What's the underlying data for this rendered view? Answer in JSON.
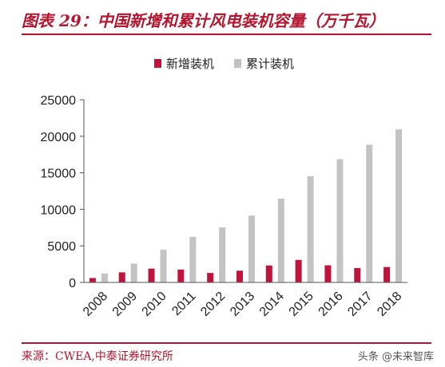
{
  "title": "图表 29：中国新增和累计风电装机容量（万千瓦）",
  "source": "来源：CWEA,中泰证券研究所",
  "watermark": "头条 @未来智库",
  "colors": {
    "accent": "#b5142f",
    "new_series": "#c0143c",
    "cumulative_series": "#c3c3c3",
    "axis": "#555555"
  },
  "chart_data": {
    "type": "bar",
    "categories": [
      "2008",
      "2009",
      "2010",
      "2011",
      "2012",
      "2013",
      "2014",
      "2015",
      "2016",
      "2017",
      "2018"
    ],
    "series": [
      {
        "name": "新增装机",
        "color": "#c0143c",
        "values": [
          600,
          1380,
          1890,
          1760,
          1300,
          1610,
          2320,
          3080,
          2340,
          1970,
          2110
        ]
      },
      {
        "name": "累计装机",
        "color": "#c3c3c3",
        "values": [
          1200,
          2580,
          4470,
          6240,
          7530,
          9140,
          11460,
          14540,
          16870,
          18840,
          20950
        ]
      }
    ],
    "yticks": [
      0,
      5000,
      10000,
      15000,
      20000,
      25000
    ],
    "ylim": [
      0,
      25000
    ],
    "grid": false,
    "legend": "top-center",
    "xlabel": "",
    "ylabel": ""
  }
}
